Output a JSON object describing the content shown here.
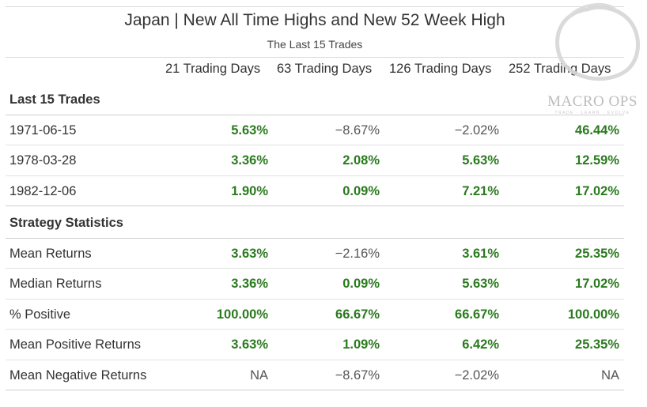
{
  "header": {
    "title": "Japan | New All Time Highs and New 52 Week High",
    "subtitle": "The Last 15 Trades"
  },
  "columns": [
    "21 Trading Days",
    "63 Trading Days",
    "126 Trading Days",
    "252 Trading Days"
  ],
  "groups": [
    {
      "label": "Last 15 Trades",
      "rows": [
        {
          "label": "1971-06-15",
          "values": [
            "5.63%",
            "−8.67%",
            "−2.02%",
            "46.44%"
          ],
          "positive": [
            true,
            false,
            false,
            true
          ]
        },
        {
          "label": "1978-03-28",
          "values": [
            "3.36%",
            "2.08%",
            "5.63%",
            "12.59%"
          ],
          "positive": [
            true,
            true,
            true,
            true
          ]
        },
        {
          "label": "1982-12-06",
          "values": [
            "1.90%",
            "0.09%",
            "7.21%",
            "17.02%"
          ],
          "positive": [
            true,
            true,
            true,
            true
          ]
        }
      ]
    },
    {
      "label": "Strategy Statistics",
      "rows": [
        {
          "label": "Mean Returns",
          "values": [
            "3.63%",
            "−2.16%",
            "3.61%",
            "25.35%"
          ],
          "positive": [
            true,
            false,
            true,
            true
          ]
        },
        {
          "label": "Median Returns",
          "values": [
            "3.36%",
            "0.09%",
            "5.63%",
            "17.02%"
          ],
          "positive": [
            true,
            true,
            true,
            true
          ]
        },
        {
          "label": "% Positive",
          "values": [
            "100.00%",
            "66.67%",
            "66.67%",
            "100.00%"
          ],
          "positive": [
            true,
            true,
            true,
            true
          ]
        },
        {
          "label": "Mean Positive Returns",
          "values": [
            "3.63%",
            "1.09%",
            "6.42%",
            "25.35%"
          ],
          "positive": [
            true,
            true,
            true,
            true
          ]
        },
        {
          "label": "Mean Negative Returns",
          "values": [
            "NA",
            "−8.67%",
            "−2.02%",
            "NA"
          ],
          "positive": [
            false,
            false,
            false,
            false
          ]
        }
      ]
    }
  ],
  "watermark": {
    "text": "MACRO OPS",
    "tagline": "TRADE · LEARN · EVOLVE"
  },
  "colors": {
    "positive": "#2a7a1e",
    "neutral": "#555555",
    "rule": "#d9d9d9"
  }
}
